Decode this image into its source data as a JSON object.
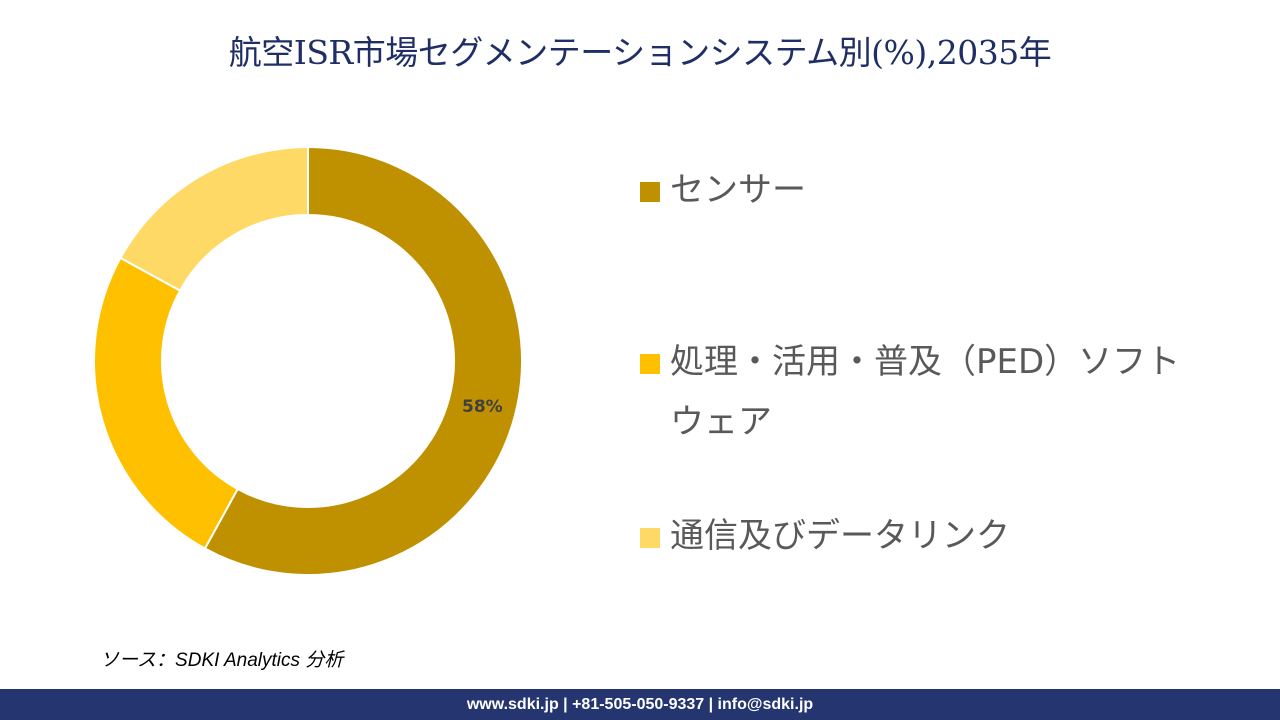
{
  "title": "航空ISR市場セグメンテーションシステム別(%),2035年",
  "legend": [
    {
      "label": "センサー",
      "color": "#bf9000"
    },
    {
      "label": "処理・活用・普及（PED）ソフトウェア",
      "color": "#ffc000"
    },
    {
      "label": "通信及びデータリンク",
      "color": "#ffd966"
    }
  ],
  "source": "ソース：SDKI Analytics 分析",
  "footer": "www.sdki.jp | +81-505-050-9337 | info@sdki.jp",
  "data_label": "58%",
  "chart_data": {
    "type": "pie",
    "subtype": "donut",
    "title": "航空ISR市場セグメンテーションシステム別(%),2035年",
    "categories": [
      "センサー",
      "処理・活用・普及（PED）ソフトウェア",
      "通信及びデータリンク"
    ],
    "values": [
      58,
      25,
      17
    ],
    "colors": [
      "#bf9000",
      "#ffc000",
      "#ffd966"
    ],
    "data_labels": [
      "58%",
      "",
      ""
    ],
    "legend_position": "right",
    "start_angle": 0,
    "direction": "clockwise"
  }
}
